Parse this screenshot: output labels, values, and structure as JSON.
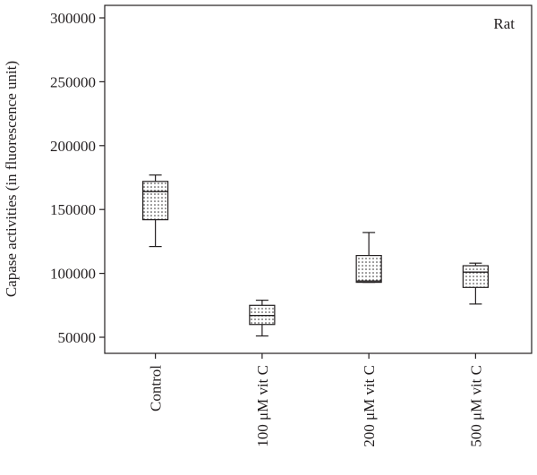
{
  "chart_data": {
    "type": "box",
    "panel_label": "Rat",
    "ylabel": "Capase activities (in fluorescence unit)",
    "xlabel": "",
    "ylim": [
      40000,
      310000
    ],
    "yticks": [
      50000,
      100000,
      150000,
      200000,
      250000,
      300000
    ],
    "ytick_labels": [
      "50000",
      "100000",
      "150000",
      "200000",
      "250000",
      "300000"
    ],
    "categories": [
      "Control",
      "100 μM vit C",
      "200 μM vit C",
      "500 μM vit C"
    ],
    "boxes": [
      {
        "category": "Control",
        "min": 121000,
        "q1": 142000,
        "median": 164000,
        "q3": 172000,
        "max": 177000
      },
      {
        "category": "100 μM vit C",
        "min": 51000,
        "q1": 60000,
        "median": 67000,
        "q3": 75000,
        "max": 79000
      },
      {
        "category": "200 μM vit C",
        "min": 93000,
        "q1": 93000,
        "median": 94000,
        "q3": 114000,
        "max": 132000
      },
      {
        "category": "500 μM vit C",
        "min": 76000,
        "q1": 89000,
        "median": 101000,
        "q3": 106000,
        "max": 108000
      }
    ],
    "grid": false,
    "legend": "none",
    "box_fill": "dotted"
  }
}
